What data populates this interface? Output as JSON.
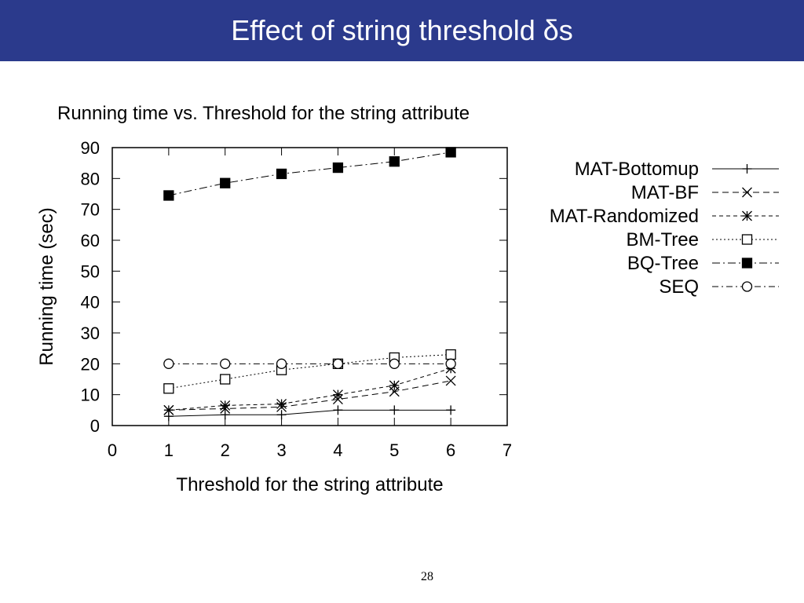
{
  "header": {
    "title": "Effect of string threshold δs",
    "background": "#2b3a8c"
  },
  "page_number": "28",
  "chart_data": {
    "type": "line",
    "title": "Running time vs. Threshold for the string attribute",
    "xlabel": "Threshold for the string attribute",
    "ylabel": "Running time (sec)",
    "xlim": [
      0,
      7
    ],
    "ylim": [
      0,
      90
    ],
    "xticks": [
      0,
      1,
      2,
      3,
      4,
      5,
      6,
      7
    ],
    "yticks": [
      0,
      10,
      20,
      30,
      40,
      50,
      60,
      70,
      80,
      90
    ],
    "grid": false,
    "legend_position": "right",
    "x": [
      1,
      2,
      3,
      4,
      5,
      6
    ],
    "series": [
      {
        "name": "MAT-Bottomup",
        "marker": "plus",
        "dash": "solid",
        "values": [
          3,
          3.5,
          3.5,
          5,
          5,
          5
        ]
      },
      {
        "name": "MAT-BF",
        "marker": "cross",
        "dash": "dashed",
        "values": [
          5,
          5.5,
          6,
          8.5,
          11,
          14.5
        ]
      },
      {
        "name": "MAT-Randomized",
        "marker": "star",
        "dash": "dashed-fine",
        "values": [
          5,
          6.5,
          7,
          10,
          13,
          18.5
        ]
      },
      {
        "name": "BM-Tree",
        "marker": "open-square",
        "dash": "dotted",
        "values": [
          12,
          15,
          18,
          20,
          22,
          23
        ]
      },
      {
        "name": "BQ-Tree",
        "marker": "filled-square",
        "dash": "dash-dot",
        "values": [
          74.5,
          78.5,
          81.5,
          83.5,
          85.5,
          88.5
        ]
      },
      {
        "name": "SEQ",
        "marker": "open-circle",
        "dash": "dash-dot-fine",
        "values": [
          20,
          20,
          20,
          20,
          20,
          20
        ]
      }
    ]
  }
}
